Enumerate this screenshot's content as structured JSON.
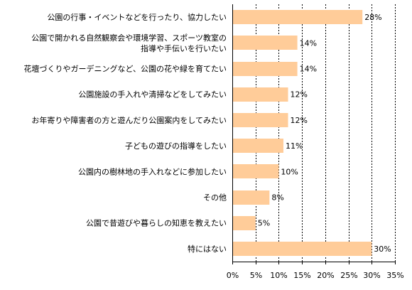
{
  "chart_data": {
    "type": "bar",
    "orientation": "horizontal",
    "categories": [
      [
        "公園の行事・イベントなどを行ったり、協力したい"
      ],
      [
        "公園で開かれる自然観察会や環境学習、スポーツ教室の",
        "指導や手伝いを行いたい"
      ],
      [
        "花壇づくりやガーデニングなど、公園の花や緑を育てたい"
      ],
      [
        "公園施設の手入れや清掃などをしてみたい"
      ],
      [
        "お年寄りや障害者の方と遊んだり公園案内をしてみたい"
      ],
      [
        "子どもの遊びの指導をしたい"
      ],
      [
        "公園内の樹林地の手入れなどに参加したい"
      ],
      [
        "その他"
      ],
      [
        "公園で昔遊びや暮らしの知恵を教えたい"
      ],
      [
        "特にはない"
      ]
    ],
    "values": [
      28,
      14,
      14,
      12,
      12,
      11,
      10,
      8,
      5,
      30
    ],
    "value_labels": [
      "28%",
      "14%",
      "14%",
      "12%",
      "12%",
      "11%",
      "10%",
      "8%",
      "5%",
      "30%"
    ],
    "xlim": [
      0,
      35
    ],
    "xticks": [
      0,
      5,
      10,
      15,
      20,
      25,
      30,
      35
    ],
    "xtick_labels": [
      "0%",
      "5%",
      "10%",
      "15%",
      "20%",
      "25%",
      "30%",
      "35%"
    ],
    "grid": "vertical dashed",
    "legend": "none",
    "colors": {
      "bar": "#FFCC99",
      "axis": "#000000",
      "grid": "#000000"
    }
  }
}
